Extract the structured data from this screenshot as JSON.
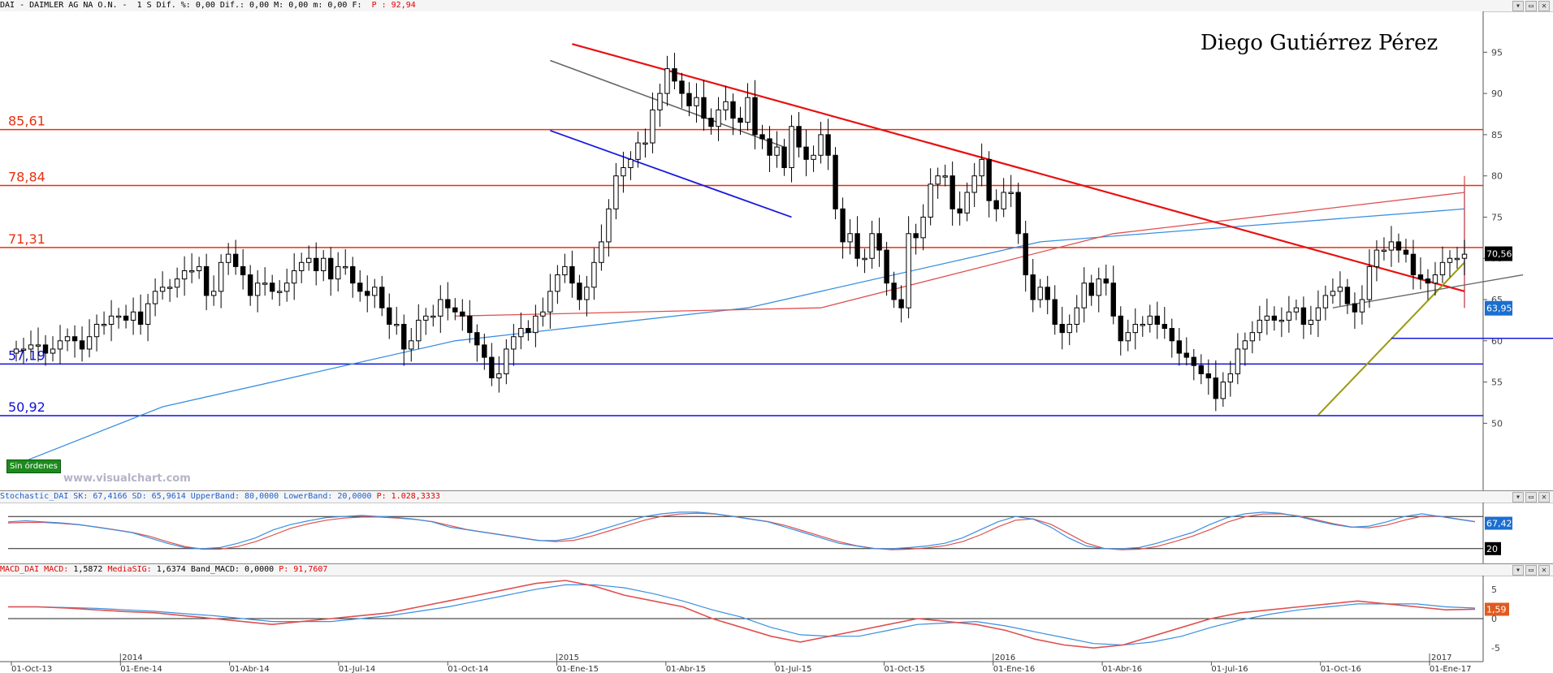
{
  "header": {
    "main_left": "DAI - DAIMLER AG NA O.N. -  1 S Dif. %: 0,00 Dif.: 0,00 M: 0,00 m: 0,00 F: ",
    "main_right": " P : 92,94",
    "stoch_left": "Stochastic_DAI SK: 67,4166 SD: 65,9614 UpperBand: 80,0000 LowerBand: 20,0000 ",
    "stoch_right": "P: 1.028,3333",
    "macd_left": "MACD_DAI MACD: ",
    "macd_mid1": "1,5872 ",
    "macd_sig": "MediaSIG: ",
    "macd_mid2": "1,6374 Band_MACD: 0,0000 ",
    "macd_right": "P: 91,7607"
  },
  "author": "Diego Gutiérrez Pérez",
  "badge": "Sin órdenes",
  "watermark": "www.visualchart.com",
  "colors": {
    "price_up": "#ffffff",
    "price_down": "#000000",
    "ma_long": "#3a8fe0",
    "ma_short": "#e05050",
    "resistance": "#e83010",
    "support": "#1010d8",
    "trend_red": "#e81010",
    "trend_grey": "#666666",
    "trend_blue": "#1a1ae0",
    "trend_olive": "#9a9a10",
    "last_price_bg": "#000000",
    "ma_box": "#1a6fd0"
  },
  "chart_data": [
    {
      "type": "candlestick",
      "title": "DAI - DAIMLER AG NA O.N.",
      "x_axis_labels": [
        "2014",
        "2015",
        "2016",
        "2017"
      ],
      "x_ticks": [
        "01-Oct-13",
        "01-Ene-14",
        "01-Abr-14",
        "01-Jul-14",
        "01-Oct-14",
        "01-Ene-15",
        "01-Abr-15",
        "01-Jul-15",
        "01-Oct-15",
        "01-Ene-16",
        "01-Abr-16",
        "01-Jul-16",
        "01-Oct-16",
        "01-Ene-17"
      ],
      "y_ticks": [
        50,
        55,
        60,
        65,
        70,
        75,
        80,
        85,
        90,
        95
      ],
      "ylim": [
        46,
        97
      ],
      "levels": [
        {
          "label": "85,61",
          "value": 85.61,
          "color": "resistance"
        },
        {
          "label": "78,84",
          "value": 78.84,
          "color": "resistance"
        },
        {
          "label": "71,31",
          "value": 71.31,
          "color": "resistance"
        },
        {
          "label": "57,19",
          "value": 57.19,
          "color": "support"
        },
        {
          "label": "50,92",
          "value": 50.92,
          "color": "support"
        }
      ],
      "last_price": "70,56",
      "ma_value_label": "63,95",
      "close_approx": [
        59,
        59,
        59.5,
        59.5,
        58.5,
        59,
        60,
        60.5,
        60,
        59,
        60.5,
        62,
        62,
        63,
        63,
        62.5,
        63.5,
        62,
        64.5,
        66,
        66.5,
        66.5,
        67.5,
        68.5,
        68.5,
        69,
        65.5,
        66,
        69.5,
        70.5,
        69,
        68,
        65.5,
        67,
        67,
        66,
        66,
        67,
        68.5,
        69.5,
        70,
        68.5,
        70,
        67.5,
        69,
        69,
        67,
        66,
        65.5,
        66.5,
        64,
        62,
        62,
        59,
        60,
        62.5,
        63,
        63,
        65,
        64,
        63.5,
        63,
        61,
        59.5,
        58,
        55.5,
        56,
        59,
        60.5,
        61.5,
        61,
        63,
        63.5,
        66,
        68,
        69,
        67,
        65,
        66.5,
        69.5,
        72,
        76,
        80,
        81,
        82,
        84,
        84,
        88,
        90,
        93,
        91.5,
        90,
        88.5,
        89.5,
        87,
        86,
        88,
        89,
        87,
        86.5,
        89.5,
        85,
        84.5,
        82.5,
        83.5,
        81,
        86,
        83.5,
        82,
        82.5,
        85,
        82.5,
        76,
        72,
        73,
        70,
        70,
        73,
        71,
        67,
        65,
        64,
        73,
        72.5,
        75,
        79,
        80,
        80,
        76,
        75.5,
        78,
        80,
        82,
        77,
        76,
        78,
        78,
        73,
        68,
        65,
        66.5,
        65,
        62,
        61,
        62,
        64,
        67,
        65.5,
        67.5,
        67,
        63,
        60,
        61,
        62,
        62,
        63,
        62,
        61.5,
        60,
        58.5,
        58,
        57,
        56,
        55.5,
        53,
        55,
        56,
        59,
        60,
        61,
        62.5,
        63,
        62.5,
        62.5,
        63.5,
        64,
        62,
        62.5,
        64,
        65.5,
        66,
        66.5,
        64.5,
        63.5,
        65,
        69,
        71,
        71,
        72,
        71,
        70.5,
        68,
        67.5,
        67,
        68,
        69.5,
        70,
        70,
        70.5
      ],
      "moving_averages": [
        {
          "name": "long",
          "color": "ma_long",
          "points": [
            [
              0,
              45
            ],
            [
              20,
              52
            ],
            [
              60,
              60
            ],
            [
              100,
              64
            ],
            [
              140,
              72
            ],
            [
              200,
              76
            ],
            [
              260,
              79
            ],
            [
              330,
              78
            ],
            [
              400,
              68
            ],
            [
              480,
              64
            ],
            [
              540,
              64
            ]
          ]
        },
        {
          "name": "short",
          "color": "ma_short",
          "points": [
            [
              60,
              63
            ],
            [
              110,
              64
            ],
            [
              150,
              73
            ],
            [
              200,
              78
            ],
            [
              250,
              80
            ],
            [
              300,
              78
            ],
            [
              350,
              76
            ],
            [
              420,
              67
            ],
            [
              470,
              64
            ],
            [
              540,
              64
            ]
          ]
        }
      ]
    },
    {
      "type": "line",
      "title": "Stochastic_DAI",
      "series": [
        {
          "name": "SK",
          "value_label": "67,42"
        },
        {
          "name": "SD"
        }
      ],
      "upper_band": 80,
      "lower_band": 20,
      "y_ticks": [
        0,
        20,
        40,
        60,
        80,
        100
      ],
      "y_tick_label": "20",
      "sk_values": [
        70,
        72,
        70,
        68,
        65,
        60,
        55,
        50,
        40,
        30,
        22,
        20,
        22,
        30,
        40,
        55,
        65,
        72,
        78,
        80,
        82,
        80,
        78,
        75,
        70,
        60,
        55,
        50,
        45,
        40,
        35,
        35,
        40,
        50,
        60,
        70,
        80,
        85,
        88,
        88,
        85,
        80,
        75,
        70,
        60,
        50,
        40,
        30,
        25,
        20,
        20,
        22,
        25,
        30,
        40,
        55,
        70,
        80,
        75,
        60,
        40,
        25,
        20,
        20,
        22,
        30,
        40,
        50,
        65,
        78,
        85,
        88,
        86,
        80,
        72,
        65,
        60,
        62,
        70,
        80,
        85,
        80,
        75,
        70
      ]
    },
    {
      "type": "line",
      "title": "MACD_DAI",
      "series": [
        {
          "name": "MACD",
          "value_label": "1,59"
        },
        {
          "name": "MediaSIG"
        }
      ],
      "y_ticks": [
        -5,
        0,
        5
      ],
      "macd_values": [
        2,
        2,
        1.8,
        1.5,
        1.2,
        1,
        0.5,
        0,
        -0.5,
        -1,
        -0.5,
        0,
        0.5,
        1,
        2,
        3,
        4,
        5,
        6,
        6.5,
        5.5,
        4,
        3,
        2,
        0,
        -1.5,
        -3,
        -4,
        -3,
        -2,
        -1,
        0,
        -0.5,
        -1,
        -2,
        -3.5,
        -4.5,
        -5,
        -4.5,
        -3,
        -1.5,
        0,
        1,
        1.5,
        2,
        2.5,
        3,
        2.5,
        2,
        1.5,
        1.6
      ]
    }
  ]
}
